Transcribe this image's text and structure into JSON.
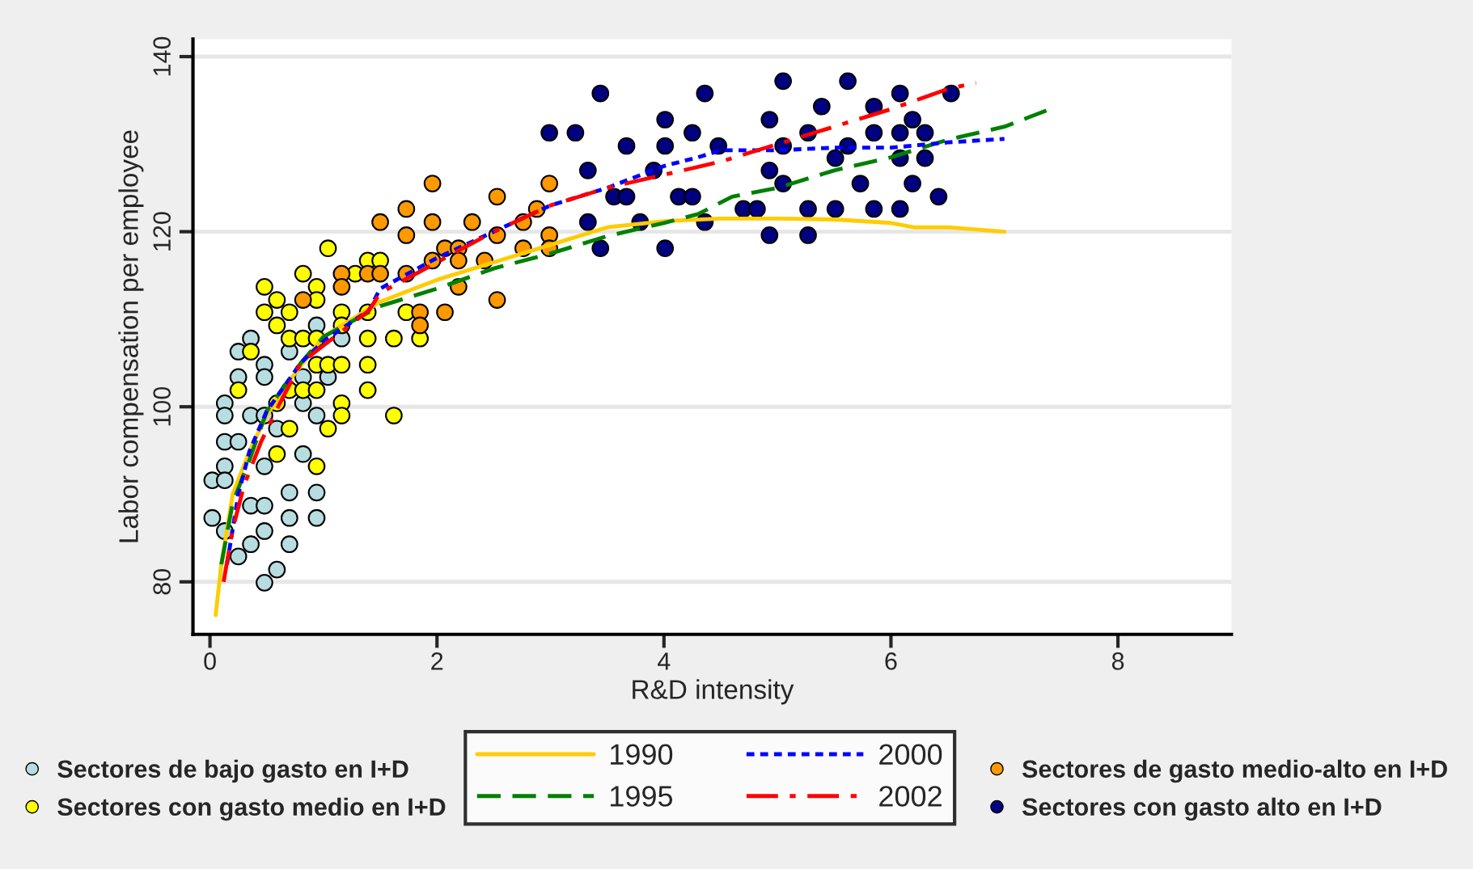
{
  "chart_data": {
    "type": "scatter",
    "xlabel": "R&D intensity",
    "ylabel": "Labor compensation per employee",
    "xlim": [
      -0.15,
      9.0
    ],
    "ylim": [
      74,
      142
    ],
    "xticks": [
      0,
      2,
      4,
      6,
      8
    ],
    "yticks": [
      80,
      100,
      120,
      140
    ],
    "grid": "y",
    "legend": "bottom",
    "series": [
      {
        "name": "Sectores de bajo gasto en I+D",
        "marker": "circle",
        "color": "#b7dde0",
        "x": [
          0.02,
          0.02,
          0.13,
          0.13,
          0.13,
          0.13,
          0.13,
          0.13,
          0.25,
          0.25,
          0.25,
          0.25,
          0.36,
          0.36,
          0.36,
          0.36,
          0.48,
          0.48,
          0.48,
          0.48,
          0.48,
          0.48,
          0.48,
          0.59,
          0.59,
          0.7,
          0.7,
          0.7,
          0.7,
          0.82,
          0.82,
          0.82,
          0.94,
          0.94,
          0.94,
          0.94,
          1.04,
          1.16
        ],
        "values": [
          91.6,
          87.3,
          100.4,
          99.0,
          96.0,
          93.2,
          91.6,
          85.8,
          106.3,
          103.4,
          96.0,
          82.9,
          107.8,
          99.0,
          88.7,
          84.3,
          104.8,
          103.4,
          99.0,
          93.2,
          88.7,
          85.8,
          79.9,
          97.5,
          81.4,
          106.3,
          90.2,
          87.3,
          84.3,
          103.4,
          100.4,
          94.6,
          109.3,
          99.0,
          90.2,
          87.3,
          103.4,
          107.8
        ]
      },
      {
        "name": "Sectores con gasto medio en I+D",
        "marker": "circle",
        "color": "#ffff00",
        "x": [
          0.25,
          0.36,
          0.48,
          0.48,
          0.59,
          0.59,
          0.59,
          0.59,
          0.7,
          0.7,
          0.7,
          0.7,
          0.82,
          0.82,
          0.82,
          0.94,
          0.94,
          0.94,
          0.94,
          0.94,
          0.94,
          1.04,
          1.04,
          1.04,
          1.16,
          1.16,
          1.16,
          1.16,
          1.16,
          1.28,
          1.39,
          1.39,
          1.39,
          1.39,
          1.39,
          1.5,
          1.62,
          1.62,
          1.73,
          1.85
        ],
        "values": [
          101.9,
          106.3,
          113.7,
          110.8,
          112.2,
          109.3,
          100.4,
          94.6,
          110.8,
          107.8,
          101.9,
          97.5,
          115.2,
          107.8,
          101.9,
          113.7,
          112.2,
          107.8,
          104.8,
          101.9,
          93.2,
          118.1,
          104.8,
          97.5,
          110.8,
          109.3,
          104.8,
          100.4,
          99.0,
          115.2,
          116.7,
          110.8,
          107.8,
          104.8,
          101.9,
          116.7,
          107.8,
          99.0,
          110.8,
          107.8
        ]
      },
      {
        "name": "Sectores de gasto medio-alto en I+D",
        "marker": "circle",
        "color": "#ff9900",
        "x": [
          0.82,
          1.16,
          1.16,
          1.39,
          1.5,
          1.5,
          1.73,
          1.73,
          1.73,
          1.85,
          1.85,
          1.96,
          1.96,
          1.96,
          2.07,
          2.07,
          2.19,
          2.19,
          2.19,
          2.31,
          2.42,
          2.53,
          2.53,
          2.53,
          2.76,
          2.76,
          2.88,
          2.99,
          2.99,
          2.99
        ],
        "values": [
          112.2,
          115.2,
          113.7,
          115.2,
          121.1,
          115.2,
          122.6,
          119.6,
          115.2,
          110.8,
          109.3,
          125.5,
          121.1,
          116.7,
          118.1,
          110.8,
          118.1,
          116.7,
          113.7,
          121.1,
          116.7,
          124.0,
          119.6,
          112.2,
          121.1,
          118.1,
          122.6,
          125.5,
          119.6,
          118.1
        ]
      },
      {
        "name": "Sectores con gasto alto en I+D",
        "marker": "circle",
        "color": "#000080",
        "x": [
          2.99,
          3.22,
          3.33,
          3.33,
          3.44,
          3.44,
          3.56,
          3.67,
          3.67,
          3.79,
          3.91,
          4.01,
          4.01,
          4.01,
          4.13,
          4.25,
          4.25,
          4.36,
          4.36,
          4.48,
          4.7,
          4.82,
          4.93,
          4.93,
          4.93,
          5.05,
          5.05,
          5.05,
          5.27,
          5.27,
          5.27,
          5.39,
          5.51,
          5.51,
          5.62,
          5.62,
          5.73,
          5.85,
          5.85,
          5.85,
          6.08,
          6.08,
          6.08,
          6.08,
          6.19,
          6.19,
          6.3,
          6.3,
          6.42,
          6.53
        ],
        "values": [
          131.3,
          131.3,
          127.0,
          121.1,
          135.8,
          118.1,
          124.0,
          129.8,
          124.0,
          121.1,
          127.0,
          132.8,
          129.8,
          118.1,
          124.0,
          131.3,
          124.0,
          135.8,
          121.1,
          129.8,
          122.6,
          122.6,
          132.8,
          127.0,
          119.6,
          137.2,
          129.8,
          125.5,
          131.3,
          122.6,
          119.6,
          134.3,
          128.4,
          122.6,
          137.2,
          129.8,
          125.5,
          134.3,
          131.3,
          122.6,
          135.8,
          131.3,
          128.4,
          122.6,
          132.8,
          125.5,
          131.3,
          128.4,
          124.0,
          135.8
        ]
      },
      {
        "name": "1990",
        "type": "line",
        "line_style": "solid",
        "color": "#ffcc00",
        "x": [
          0.05,
          0.1,
          0.2,
          0.35,
          0.5,
          0.7,
          1.0,
          1.5,
          2.0,
          2.5,
          3.0,
          3.5,
          4.0,
          4.5,
          5.0,
          5.5,
          6.0,
          6.2,
          6.5,
          7.0
        ],
        "values": [
          76.2,
          82,
          90,
          95,
          99,
          103,
          108,
          112,
          114.5,
          116.5,
          118.5,
          120.5,
          121.2,
          121.5,
          121.5,
          121.4,
          121,
          120.5,
          120.5,
          120
        ]
      },
      {
        "name": "1995",
        "type": "line",
        "line_style": "dashed",
        "color": "#008000",
        "x": [
          0.1,
          0.2,
          0.35,
          0.5,
          0.8,
          1.0,
          1.5,
          2.0,
          2.5,
          3.0,
          3.5,
          4.0,
          4.3,
          4.6,
          5.0,
          5.5,
          6.0,
          6.5,
          7.0,
          7.4
        ],
        "values": [
          82,
          89,
          94,
          99.5,
          105,
          108,
          111.5,
          113.5,
          115.8,
          117.5,
          119.5,
          121,
          122,
          124,
          125,
          127,
          128.5,
          130.5,
          132,
          134
        ]
      },
      {
        "name": "2000",
        "type": "line",
        "line_style": "dotted",
        "color": "#0000ff",
        "x": [
          0.15,
          0.25,
          0.35,
          0.5,
          0.8,
          1.0,
          1.4,
          1.5,
          2.0,
          2.5,
          3.0,
          3.5,
          4.0,
          4.3,
          4.5,
          5.0,
          5.5,
          6.0,
          6.5,
          7.0
        ],
        "values": [
          82,
          90,
          95,
          99.5,
          105,
          107.5,
          111,
          113.5,
          117,
          120,
          123,
          125,
          127.5,
          128.5,
          129.3,
          129.3,
          129.6,
          129.6,
          130.2,
          130.6
        ]
      },
      {
        "name": "2002",
        "type": "line",
        "line_style": "dashdot",
        "color": "#ff0000",
        "x": [
          0.12,
          0.2,
          0.3,
          0.45,
          0.6,
          0.8,
          1.0,
          1.4,
          1.5,
          2.0,
          2.5,
          3.0,
          3.5,
          4.0,
          4.5,
          5.0,
          5.5,
          6.0,
          6.5,
          6.75
        ],
        "values": [
          80,
          86,
          91,
          96,
          100,
          105,
          107,
          111,
          113,
          116.5,
          120,
          123,
          125,
          126.5,
          128,
          130,
          132,
          134,
          136.3,
          137
        ]
      }
    ]
  }
}
